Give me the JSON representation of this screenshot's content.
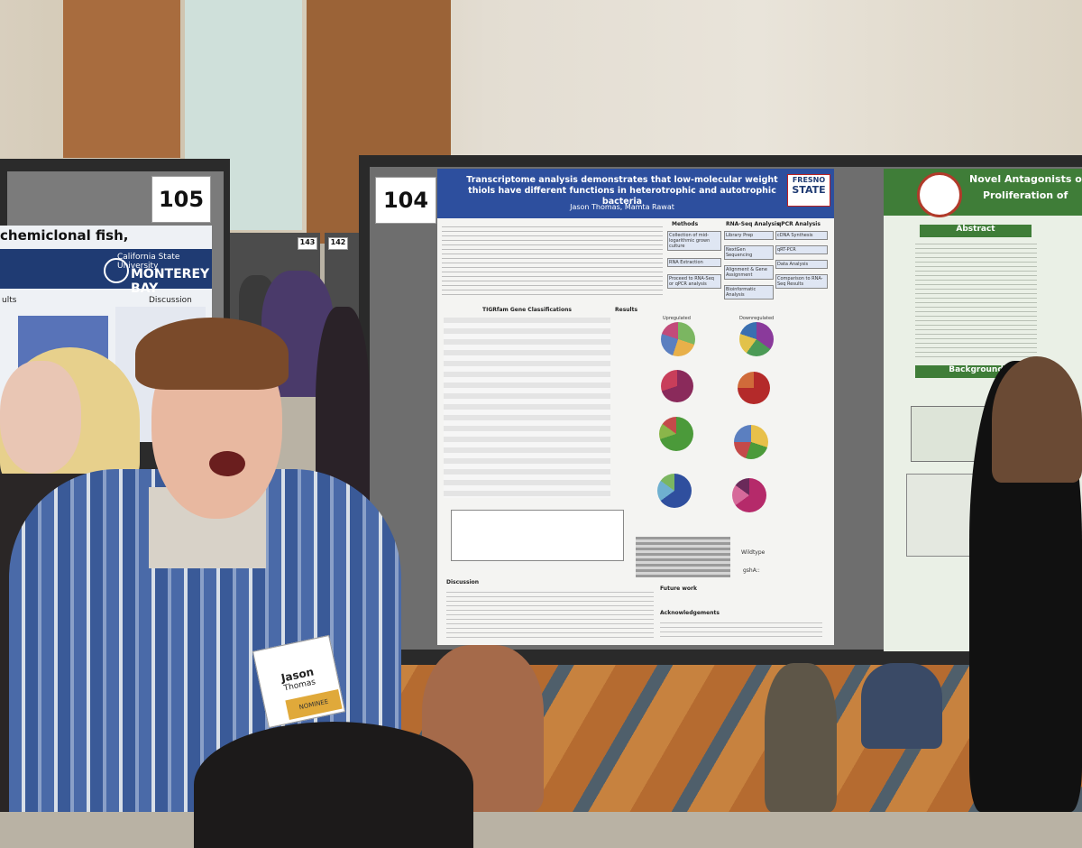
{
  "scene": "Photo of a person presenting at an academic poster session",
  "boards": {
    "left_number": "105",
    "main_number": "104",
    "small_numbers": [
      "143",
      "142"
    ]
  },
  "left_poster": {
    "fragment_text": "chemiclonal fish,",
    "university_line1": "California State University",
    "university_line2": "MONTEREY BAY",
    "results_label": "ults",
    "discussion_label": "Discussion"
  },
  "main_poster": {
    "title": "Transcriptome analysis demonstrates that low-molecular weight thiols have different functions in heterotrophic and autotrophic bacteria",
    "authors": "Jason Thomas, Mamta Rawat",
    "logo_line1": "FRESNO",
    "logo_line2": "STATE",
    "methods_heading": "Methods",
    "methods_steps": [
      "Collection of mid-logarithmic grown culture",
      "RNA Extraction",
      "Proceed to RNA-Seq or qPCR analysis"
    ],
    "rnaseq_heading": "RNA-Seq Analysis",
    "rnaseq_steps": [
      "Library Prep",
      "NextGen Sequencing",
      "Alignment & Gene Assignment",
      "Bioinformatic Analysis"
    ],
    "qpcr_heading": "qPCR Analysis",
    "qpcr_steps": [
      "cDNA Synthesis",
      "qRT-PCR",
      "Data Analysis",
      "Comparison to RNA-Seq Results"
    ],
    "tigrfam_heading": "TIGRfam Gene Classifications",
    "results_heading": "Results",
    "pie_labels": [
      "Upregulated",
      "Downregulated"
    ],
    "discussion_heading": "Discussion",
    "future_heading": "Future work",
    "ack_heading": "Acknowledgements",
    "gene_labels": [
      "Wildtype",
      "gshA::"
    ]
  },
  "right_poster": {
    "title_line1": "Novel Antagonists of Growth",
    "title_line2": "Proliferation of",
    "abstract_heading": "Abstract",
    "background_heading": "Background"
  },
  "name_badge": {
    "name_line1": "Jason",
    "name_line2": "Thomas",
    "ribbon": "NOMINEE"
  },
  "colors": {
    "poster_blue": "#2d4f9e",
    "poster_green": "#3f7d38",
    "shirt_blue": "#4a6aa8"
  }
}
